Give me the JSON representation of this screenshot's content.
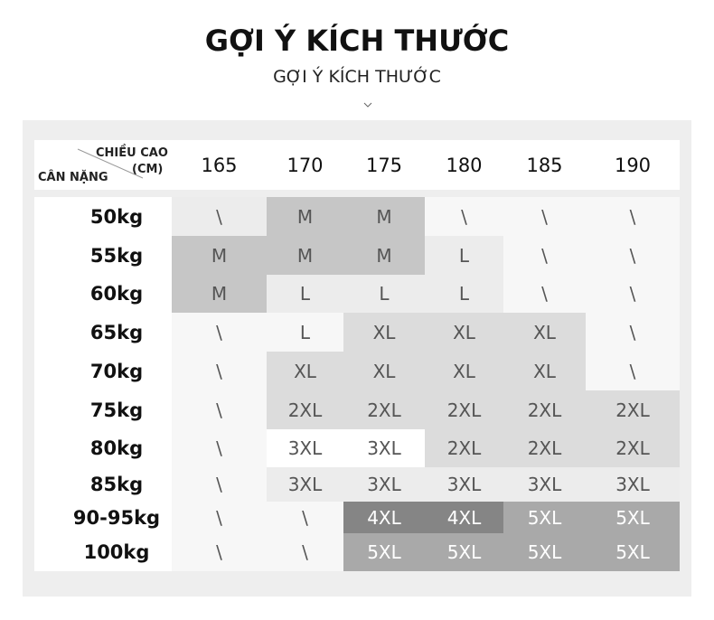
{
  "header": {
    "title": "GỢI Ý KÍCH THƯỚC",
    "subtitle": "GỢI Ý KÍCH THƯỚC"
  },
  "table": {
    "corner": {
      "column_label": "CHIỀU CAO",
      "column_unit": "(CM)",
      "row_label": "CÂN NẶNG"
    },
    "columns": [
      "165",
      "170",
      "175",
      "180",
      "185",
      "190"
    ],
    "rows": [
      {
        "label": "50kg",
        "cells": [
          "\\",
          "M",
          "M",
          "\\",
          "\\",
          "\\"
        ]
      },
      {
        "label": "55kg",
        "cells": [
          "M",
          "M",
          "M",
          "L",
          "\\",
          "\\"
        ]
      },
      {
        "label": "60kg",
        "cells": [
          "M",
          "L",
          "L",
          "L",
          "\\",
          "\\"
        ]
      },
      {
        "label": "65kg",
        "cells": [
          "\\",
          "L",
          "XL",
          "XL",
          "XL",
          "\\"
        ]
      },
      {
        "label": "70kg",
        "cells": [
          "\\",
          "XL",
          "XL",
          "XL",
          "XL",
          "\\"
        ]
      },
      {
        "label": "75kg",
        "cells": [
          "\\",
          "2XL",
          "2XL",
          "2XL",
          "2XL",
          "2XL"
        ]
      },
      {
        "label": "80kg",
        "cells": [
          "\\",
          "3XL",
          "3XL",
          "2XL",
          "2XL",
          "2XL"
        ]
      },
      {
        "label": "85kg",
        "cells": [
          "\\",
          "3XL",
          "3XL",
          "3XL",
          "3XL",
          "3XL"
        ]
      },
      {
        "label": "90-95kg",
        "cells": [
          "\\",
          "\\",
          "4XL",
          "4XL",
          "5XL",
          "5XL"
        ]
      },
      {
        "label": "100kg",
        "cells": [
          "\\",
          "\\",
          "5XL",
          "5XL",
          "5XL",
          "5XL"
        ]
      }
    ]
  }
}
